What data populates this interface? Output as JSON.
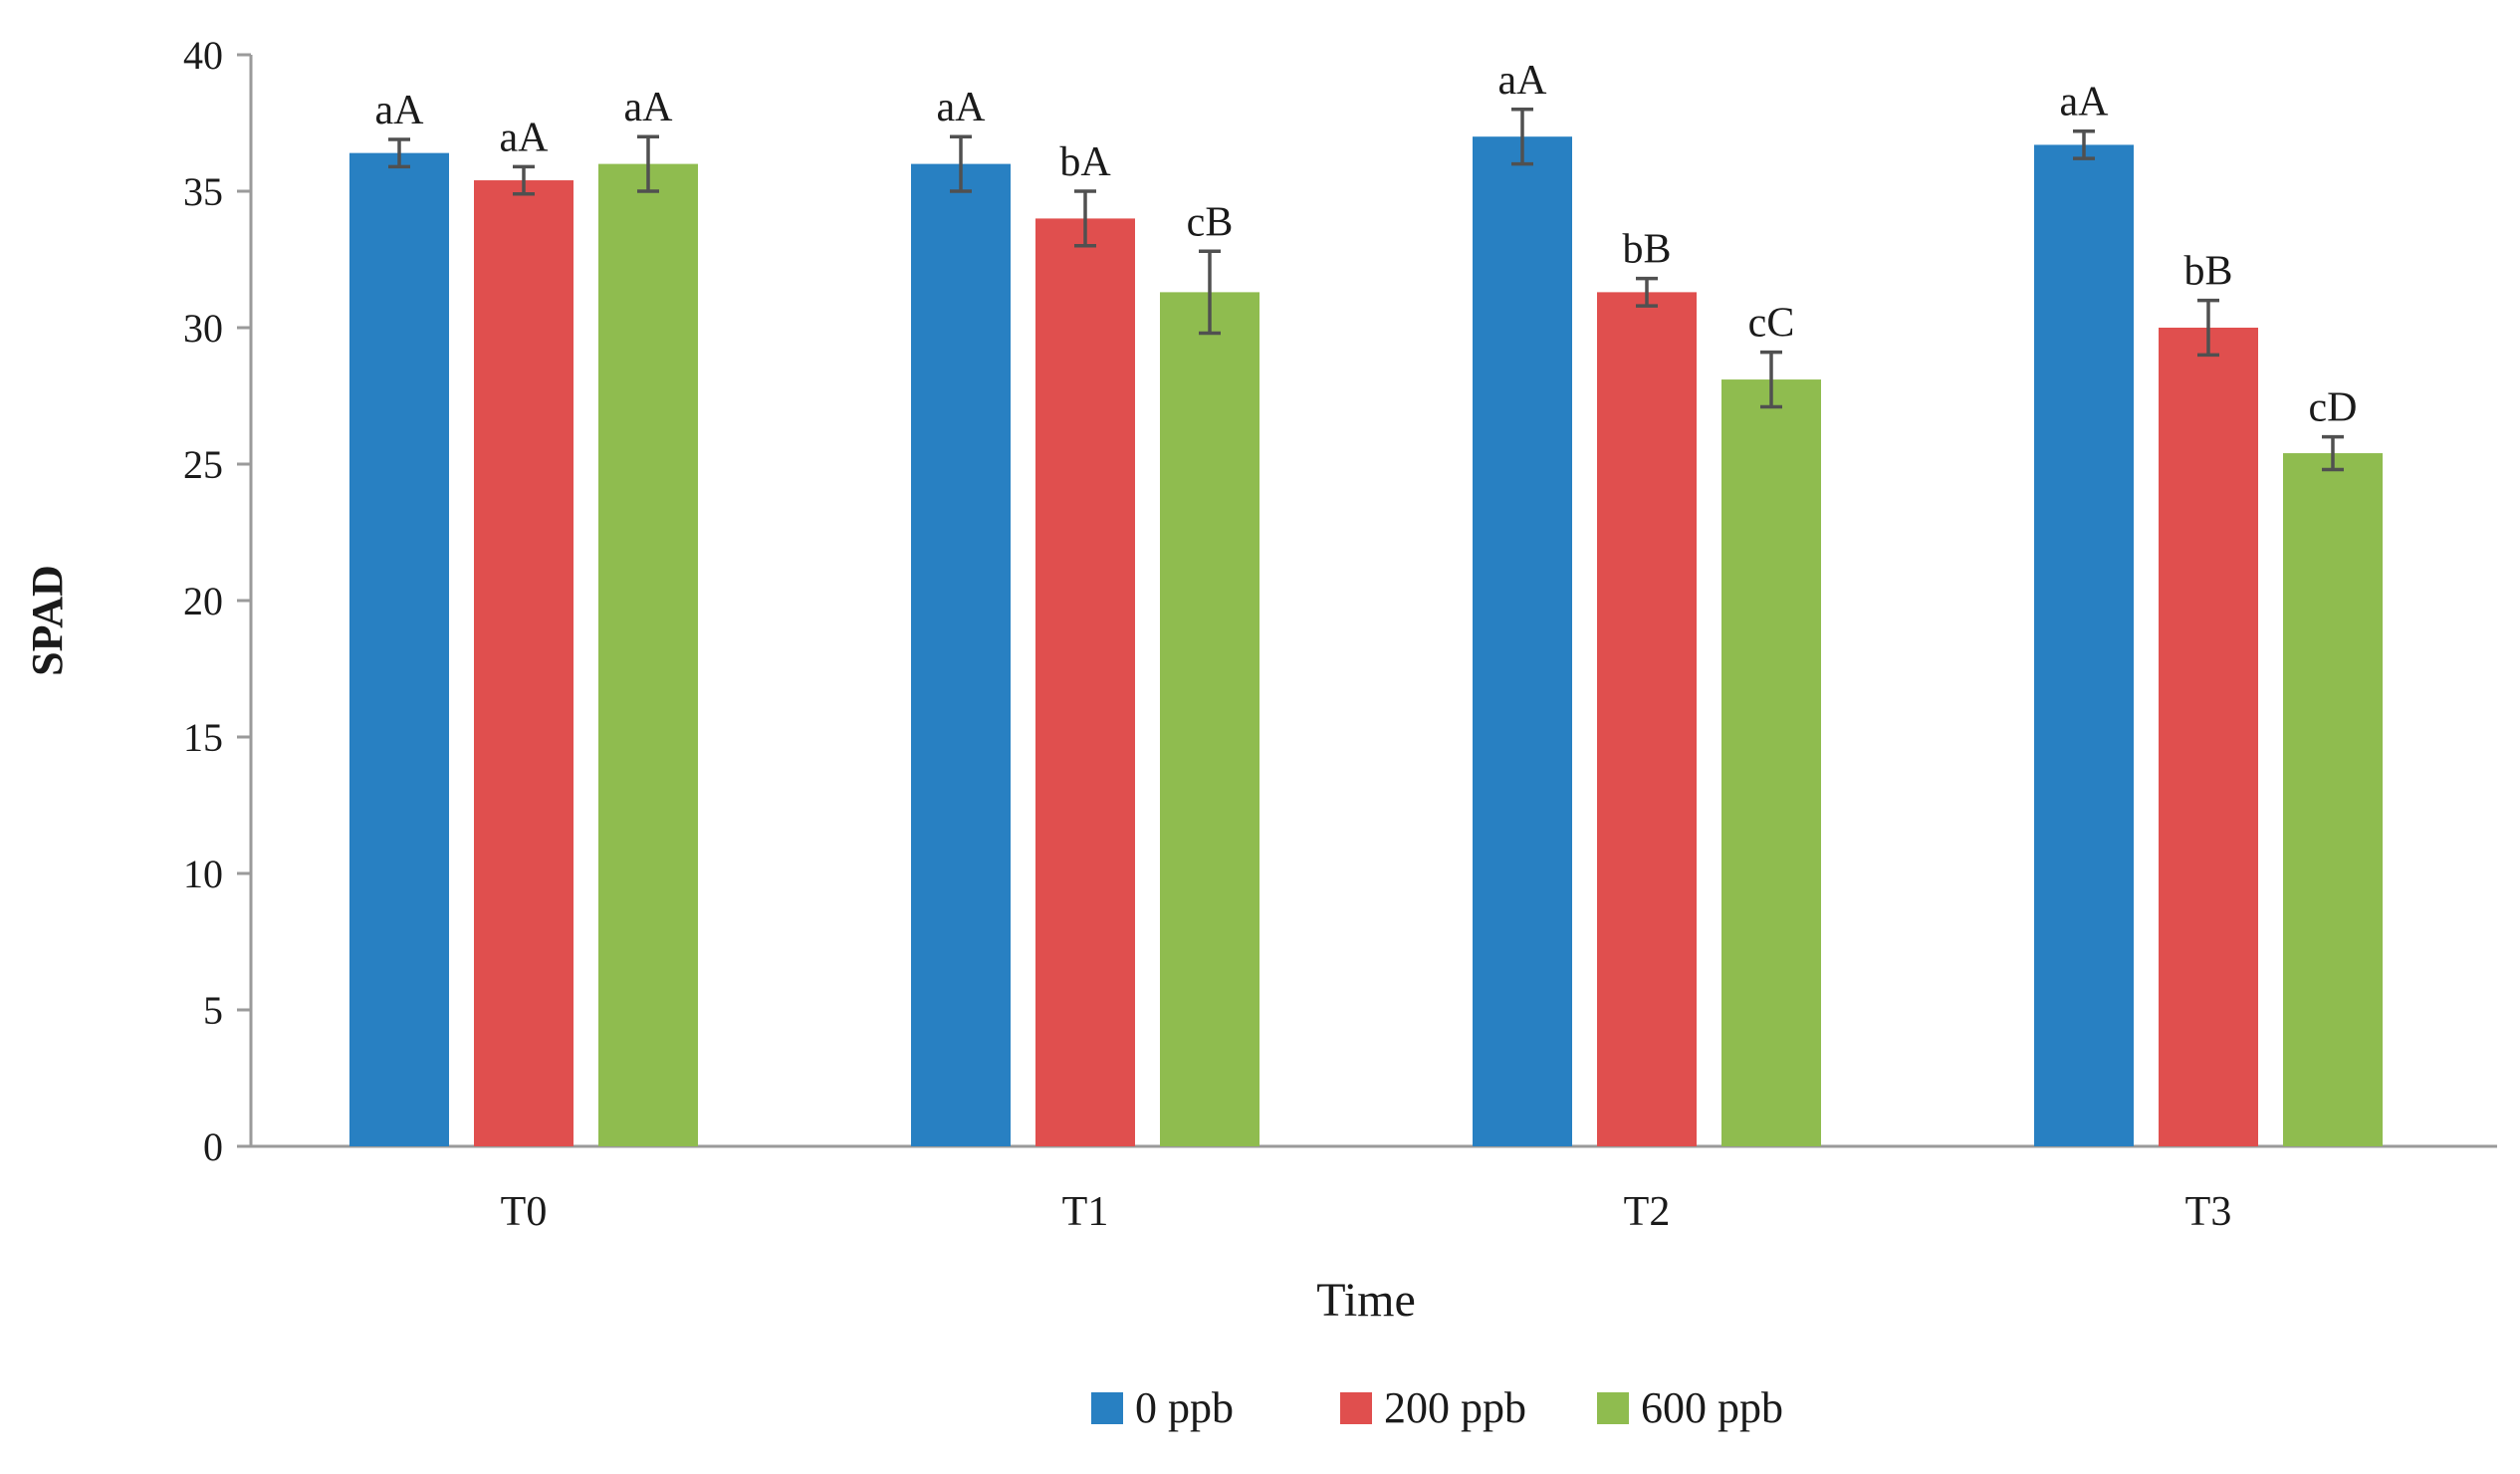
{
  "chart_data": {
    "type": "bar",
    "title": "",
    "xlabel": "Time",
    "ylabel": "SPAD",
    "ylim": [
      0,
      40
    ],
    "yticks": [
      0,
      5,
      10,
      15,
      20,
      25,
      30,
      35,
      40
    ],
    "categories": [
      "T0",
      "T1",
      "T2",
      "T3"
    ],
    "legend_position": "bottom-center",
    "grid": false,
    "series": [
      {
        "name": "0 ppb",
        "color": "#2880C2",
        "values": [
          36.4,
          36.0,
          37.0,
          36.7
        ],
        "errors": [
          0.5,
          1.0,
          1.0,
          0.5
        ],
        "labels": [
          "aA",
          "aA",
          "aA",
          "aA"
        ]
      },
      {
        "name": "200 ppb",
        "color": "#E04F4E",
        "values": [
          35.4,
          34.0,
          31.3,
          30.0
        ],
        "errors": [
          0.5,
          1.0,
          0.5,
          1.0
        ],
        "labels": [
          "aA",
          "bA",
          "bB",
          "bB"
        ]
      },
      {
        "name": "600 ppb",
        "color": "#8FBC4F",
        "values": [
          36.0,
          31.3,
          28.1,
          25.4
        ],
        "errors": [
          1.0,
          1.5,
          1.0,
          0.6
        ],
        "labels": [
          "aA",
          "cB",
          "cC",
          "cD"
        ]
      }
    ]
  }
}
